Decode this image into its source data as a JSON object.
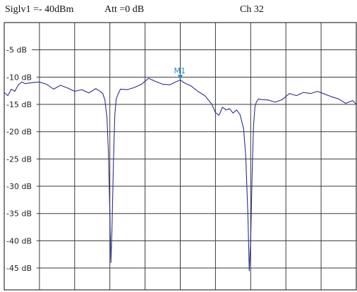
{
  "header": {
    "signal_level": "Siglv1 =- 40dBm",
    "attenuation": "Att =0 dB",
    "channel": "Ch 32"
  },
  "chart_data": {
    "type": "line",
    "title": "",
    "xlabel": "",
    "ylabel": "",
    "ylim": [
      -49,
      0
    ],
    "xlim": [
      0,
      100
    ],
    "grid": true,
    "y_ticks": [
      {
        "value": -5,
        "label": "-5 dB"
      },
      {
        "value": -10,
        "label": "-10 dB"
      },
      {
        "value": -15,
        "label": "-15 dB"
      },
      {
        "value": -20,
        "label": "-20 dB"
      },
      {
        "value": -25,
        "label": "-25 dB"
      },
      {
        "value": -30,
        "label": "-30 dB"
      },
      {
        "value": -35,
        "label": "-35 dB"
      },
      {
        "value": -40,
        "label": "-40 dB"
      },
      {
        "value": -45,
        "label": "-45 dB"
      }
    ],
    "series": [
      {
        "color": "#2b2f8c",
        "x": [
          0,
          1,
          2,
          3,
          4,
          5,
          6,
          8,
          10,
          12,
          14,
          16,
          18,
          20,
          22,
          24,
          26,
          27,
          28,
          28.6,
          29.2,
          29.6,
          30.0,
          30.3,
          30.6,
          31.0,
          31.4,
          31.8,
          32.4,
          33,
          35,
          37,
          39,
          41,
          43,
          45,
          47,
          49,
          50,
          51,
          53,
          55,
          57,
          58,
          59,
          60,
          61,
          62,
          63,
          64,
          65,
          66,
          67,
          68,
          68.6,
          69.2,
          69.6,
          70.0,
          70.4,
          70.8,
          71.2,
          71.6,
          72.2,
          73,
          75,
          77,
          79,
          81,
          83,
          85,
          87,
          89,
          91,
          93,
          95,
          97,
          99,
          100
        ],
        "y": [
          -12.8,
          -13.4,
          -12.2,
          -12.6,
          -11.4,
          -10.9,
          -11.2,
          -11.0,
          -10.9,
          -11.3,
          -12.2,
          -11.5,
          -12.0,
          -12.6,
          -12.3,
          -12.9,
          -12.1,
          -12.5,
          -13.0,
          -14.2,
          -17.5,
          -24.0,
          -35.0,
          -44.0,
          -38.0,
          -26.0,
          -17.0,
          -14.0,
          -13.0,
          -12.2,
          -12.3,
          -11.9,
          -11.3,
          -10.2,
          -10.8,
          -11.3,
          -11.4,
          -10.8,
          -10.5,
          -11.0,
          -11.6,
          -12.6,
          -13.4,
          -14.2,
          -15.0,
          -16.5,
          -17.0,
          -15.5,
          -16.0,
          -15.8,
          -16.6,
          -16.0,
          -16.9,
          -19.5,
          -24.5,
          -35.0,
          -45.5,
          -40.0,
          -28.0,
          -19.0,
          -15.5,
          -14.6,
          -14.0,
          -14.1,
          -14.2,
          -14.6,
          -14.1,
          -13.0,
          -13.4,
          -12.8,
          -13.0,
          -12.6,
          -13.1,
          -13.6,
          -14.0,
          -14.8,
          -14.3,
          -15.0
        ]
      }
    ],
    "marker": {
      "label": "M1",
      "x": 50,
      "y": -10.5
    }
  }
}
